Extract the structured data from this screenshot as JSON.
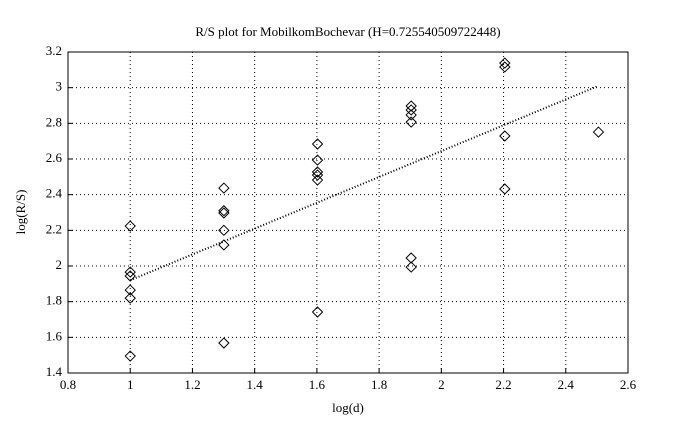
{
  "chart_data": {
    "type": "scatter",
    "title": "R/S plot for MobilkomBochevar (H=0.725540509722448)",
    "x_label": "log(d)",
    "y_label": "log(R/S)",
    "xlim": [
      0.8,
      2.6
    ],
    "xticks": [
      0.8,
      1,
      1.2,
      1.4,
      1.6,
      1.8,
      2,
      2.2,
      2.4,
      2.6
    ],
    "ylim": [
      1.4,
      3.2
    ],
    "yticks": [
      1.4,
      1.6,
      1.8,
      2,
      2.2,
      2.4,
      2.6,
      2.8,
      3,
      3.2
    ],
    "grid": true,
    "series": [
      {
        "type": "scatter",
        "color": "#000000",
        "x": [
          1,
          1,
          1,
          1,
          1,
          1,
          1.301,
          1.301,
          1.301,
          1.301,
          1.301,
          1.301,
          1.602,
          1.602,
          1.602,
          1.602,
          1.602,
          1.602,
          1.903,
          1.903,
          1.903,
          1.903,
          1.903,
          1.903,
          2.204,
          2.204,
          2.204,
          2.204,
          2.505
        ],
        "values": [
          2.224,
          1.966,
          1.944,
          1.865,
          1.82,
          1.495,
          2.437,
          2.31,
          2.297,
          2.2,
          2.118,
          1.568,
          2.684,
          2.594,
          2.527,
          2.51,
          2.482,
          1.742,
          2.897,
          2.875,
          2.847,
          2.807,
          2.045,
          1.994,
          3.138,
          3.116,
          2.729,
          2.432,
          2.751
        ]
      },
      {
        "type": "line",
        "color": "#000000",
        "x": [
          1,
          2.505
        ],
        "values": [
          1.92,
          3.01
        ]
      }
    ]
  }
}
